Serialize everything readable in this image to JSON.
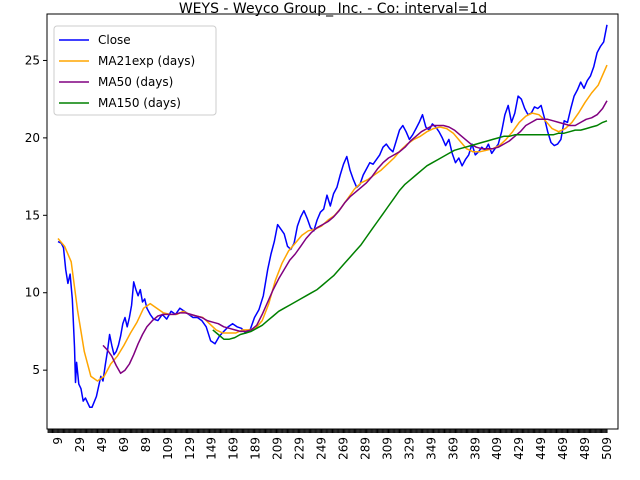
{
  "chart_data": {
    "type": "line",
    "title": "WEYS - Weyco Group_ Inc. - Co: interval=1d",
    "xlabel": "",
    "ylabel": "",
    "xlim": [
      -1,
      519
    ],
    "ylim": [
      1.2,
      28.0
    ],
    "x_ticks": [
      9,
      29,
      49,
      69,
      89,
      109,
      129,
      149,
      169,
      189,
      209,
      229,
      249,
      269,
      289,
      309,
      329,
      349,
      369,
      389,
      409,
      429,
      449,
      469,
      489,
      509
    ],
    "y_ticks": [
      5,
      10,
      15,
      20,
      25
    ],
    "grid": false,
    "legend_position": "top-left",
    "series": [
      {
        "name": "Close",
        "color": "#0000ff",
        "x": [
          9,
          12,
          14,
          16,
          18,
          20,
          22,
          24,
          25,
          26,
          28,
          30,
          32,
          34,
          36,
          38,
          40,
          44,
          48,
          50,
          52,
          54,
          56,
          58,
          60,
          62,
          64,
          66,
          68,
          70,
          72,
          74,
          76,
          78,
          80,
          82,
          84,
          86,
          88,
          90,
          93,
          96,
          100,
          104,
          108,
          112,
          116,
          120,
          124,
          128,
          132,
          136,
          140,
          144,
          148,
          152,
          156,
          160,
          164,
          168,
          172,
          176,
          180,
          184,
          188,
          192,
          196,
          200,
          203,
          206,
          209,
          212,
          215,
          218,
          221,
          224,
          227,
          230,
          233,
          236,
          239,
          242,
          245,
          248,
          251,
          254,
          257,
          260,
          263,
          266,
          269,
          272,
          275,
          278,
          281,
          284,
          287,
          290,
          293,
          296,
          299,
          302,
          305,
          308,
          311,
          314,
          317,
          320,
          323,
          326,
          329,
          332,
          335,
          338,
          341,
          344,
          347,
          350,
          353,
          356,
          359,
          362,
          365,
          368,
          371,
          374,
          377,
          380,
          383,
          386,
          389,
          392,
          395,
          398,
          401,
          404,
          407,
          410,
          413,
          416,
          419,
          422,
          425,
          428,
          431,
          434,
          437,
          440,
          443,
          446,
          449,
          452,
          455,
          458,
          461,
          464,
          467,
          470,
          473,
          476,
          479,
          482,
          485,
          488,
          491,
          494,
          497,
          500,
          503,
          506,
          509
        ],
        "values": [
          13.3,
          13.2,
          12.9,
          11.5,
          10.6,
          11.2,
          9.6,
          6.5,
          4.2,
          5.5,
          4.1,
          3.8,
          3.0,
          3.2,
          2.9,
          2.6,
          2.6,
          3.3,
          4.6,
          4.3,
          5.3,
          6.2,
          7.3,
          6.6,
          6.0,
          6.2,
          6.6,
          7.2,
          8.0,
          8.4,
          7.8,
          8.4,
          9.2,
          10.7,
          10.2,
          9.8,
          10.2,
          9.4,
          9.6,
          9.0,
          8.6,
          8.3,
          8.2,
          8.6,
          8.3,
          8.8,
          8.6,
          9.0,
          8.8,
          8.6,
          8.4,
          8.4,
          8.2,
          7.8,
          6.9,
          6.7,
          7.2,
          7.5,
          7.8,
          8.0,
          7.8,
          7.7,
          7.4,
          7.6,
          8.4,
          8.9,
          9.8,
          11.5,
          12.5,
          13.3,
          14.4,
          14.1,
          13.8,
          13.0,
          12.8,
          13.2,
          14.3,
          14.9,
          15.3,
          14.8,
          14.2,
          14.0,
          14.7,
          15.2,
          15.4,
          16.3,
          15.6,
          16.4,
          16.8,
          17.6,
          18.3,
          18.8,
          17.9,
          17.3,
          16.8,
          17.0,
          17.6,
          18.0,
          18.4,
          18.3,
          18.6,
          18.9,
          19.4,
          19.6,
          19.3,
          19.1,
          19.8,
          20.5,
          20.8,
          20.4,
          19.9,
          20.2,
          20.6,
          21.0,
          21.5,
          20.7,
          20.5,
          20.9,
          20.7,
          20.4,
          20.0,
          19.5,
          19.9,
          19.0,
          18.4,
          18.7,
          18.2,
          18.6,
          18.9,
          19.6,
          18.9,
          19.1,
          19.4,
          19.2,
          19.6,
          19.0,
          19.3,
          19.6,
          20.4,
          21.5,
          22.1,
          21.0,
          21.6,
          22.7,
          22.5,
          21.9,
          21.5,
          21.6,
          22.0,
          21.9,
          22.1,
          21.3,
          20.4,
          19.7,
          19.5,
          19.6,
          19.9,
          21.1,
          21.0,
          21.9,
          22.7,
          23.1,
          23.6,
          23.2,
          23.7,
          24.0,
          24.6,
          25.5,
          25.9,
          26.2,
          27.3
        ]
      },
      {
        "name": "MA21exp (days)",
        "color": "#ffa500",
        "x": [
          9,
          15,
          21,
          27,
          33,
          39,
          45,
          51,
          57,
          63,
          69,
          75,
          81,
          87,
          93,
          99,
          105,
          111,
          117,
          123,
          129,
          135,
          141,
          147,
          153,
          159,
          165,
          171,
          177,
          183,
          189,
          195,
          201,
          207,
          213,
          219,
          225,
          231,
          237,
          243,
          249,
          255,
          261,
          267,
          273,
          279,
          285,
          291,
          297,
          303,
          309,
          315,
          321,
          327,
          333,
          339,
          345,
          351,
          357,
          363,
          369,
          375,
          381,
          387,
          393,
          399,
          405,
          411,
          417,
          423,
          429,
          435,
          441,
          447,
          453,
          459,
          465,
          471,
          477,
          483,
          489,
          495,
          501,
          509
        ],
        "values": [
          13.5,
          13.0,
          12.0,
          8.8,
          6.2,
          4.6,
          4.3,
          4.6,
          5.4,
          5.9,
          6.6,
          7.4,
          8.1,
          9.0,
          9.3,
          9.0,
          8.7,
          8.6,
          8.6,
          8.8,
          8.6,
          8.5,
          8.4,
          8.0,
          7.6,
          7.4,
          7.4,
          7.4,
          7.6,
          7.6,
          7.7,
          8.2,
          9.3,
          10.8,
          11.9,
          12.7,
          13.2,
          13.7,
          14.0,
          14.1,
          14.3,
          14.7,
          15.0,
          15.5,
          16.1,
          16.7,
          17.1,
          17.3,
          17.6,
          17.9,
          18.3,
          18.7,
          19.2,
          19.6,
          19.9,
          20.1,
          20.4,
          20.6,
          20.7,
          20.6,
          20.3,
          19.8,
          19.3,
          19.1,
          19.1,
          19.2,
          19.3,
          19.5,
          19.9,
          20.4,
          21.0,
          21.4,
          21.6,
          21.5,
          21.1,
          20.6,
          20.4,
          20.6,
          21.0,
          21.6,
          22.3,
          22.9,
          23.4,
          24.7
        ]
      },
      {
        "name": "MA50 (days)",
        "color": "#800080",
        "x": [
          50,
          54,
          58,
          62,
          66,
          70,
          74,
          78,
          82,
          86,
          90,
          95,
          100,
          105,
          110,
          115,
          120,
          125,
          130,
          135,
          140,
          145,
          150,
          155,
          160,
          165,
          170,
          175,
          180,
          185,
          190,
          195,
          200,
          205,
          210,
          215,
          220,
          225,
          230,
          235,
          240,
          245,
          250,
          255,
          260,
          265,
          270,
          275,
          280,
          285,
          290,
          295,
          300,
          305,
          310,
          315,
          320,
          325,
          330,
          335,
          340,
          345,
          350,
          355,
          360,
          365,
          370,
          375,
          380,
          385,
          390,
          395,
          400,
          405,
          410,
          415,
          420,
          425,
          430,
          435,
          440,
          445,
          450,
          455,
          460,
          465,
          470,
          475,
          480,
          485,
          490,
          495,
          500,
          505,
          509
        ],
        "values": [
          6.6,
          6.3,
          5.9,
          5.3,
          4.8,
          5.0,
          5.4,
          6.0,
          6.7,
          7.3,
          7.8,
          8.2,
          8.5,
          8.6,
          8.6,
          8.6,
          8.7,
          8.7,
          8.6,
          8.5,
          8.4,
          8.2,
          8.1,
          8.0,
          7.8,
          7.7,
          7.6,
          7.5,
          7.5,
          7.6,
          7.9,
          8.6,
          9.4,
          10.2,
          10.9,
          11.5,
          12.1,
          12.5,
          13.0,
          13.5,
          13.9,
          14.2,
          14.4,
          14.6,
          14.9,
          15.3,
          15.8,
          16.2,
          16.5,
          16.8,
          17.1,
          17.5,
          18.0,
          18.4,
          18.7,
          18.9,
          19.1,
          19.4,
          19.8,
          20.1,
          20.4,
          20.6,
          20.8,
          20.8,
          20.8,
          20.7,
          20.5,
          20.2,
          19.9,
          19.6,
          19.4,
          19.3,
          19.3,
          19.3,
          19.4,
          19.6,
          19.8,
          20.1,
          20.4,
          20.8,
          21.0,
          21.2,
          21.2,
          21.2,
          21.1,
          21.0,
          20.9,
          20.8,
          20.8,
          21.0,
          21.2,
          21.3,
          21.5,
          21.9,
          22.4
        ]
      },
      {
        "name": "MA150 (days)",
        "color": "#008000",
        "x": [
          150,
          155,
          160,
          165,
          170,
          175,
          180,
          185,
          190,
          195,
          200,
          205,
          210,
          215,
          220,
          225,
          230,
          235,
          240,
          245,
          250,
          255,
          260,
          265,
          270,
          275,
          280,
          285,
          290,
          295,
          300,
          305,
          310,
          315,
          320,
          325,
          330,
          335,
          340,
          345,
          350,
          355,
          360,
          365,
          370,
          375,
          380,
          385,
          390,
          395,
          400,
          405,
          410,
          415,
          420,
          425,
          430,
          435,
          440,
          445,
          450,
          455,
          460,
          465,
          470,
          475,
          480,
          485,
          490,
          495,
          500,
          505,
          509
        ],
        "values": [
          7.6,
          7.3,
          7.0,
          7.0,
          7.1,
          7.3,
          7.4,
          7.5,
          7.7,
          7.9,
          8.2,
          8.5,
          8.8,
          9.0,
          9.2,
          9.4,
          9.6,
          9.8,
          10.0,
          10.2,
          10.5,
          10.8,
          11.1,
          11.5,
          11.9,
          12.3,
          12.7,
          13.1,
          13.6,
          14.1,
          14.6,
          15.1,
          15.6,
          16.1,
          16.6,
          17.0,
          17.3,
          17.6,
          17.9,
          18.2,
          18.4,
          18.6,
          18.8,
          19.0,
          19.2,
          19.3,
          19.4,
          19.5,
          19.6,
          19.7,
          19.8,
          19.9,
          20.0,
          20.1,
          20.1,
          20.2,
          20.2,
          20.2,
          20.2,
          20.2,
          20.2,
          20.2,
          20.2,
          20.3,
          20.3,
          20.4,
          20.5,
          20.5,
          20.6,
          20.7,
          20.8,
          21.0,
          21.1
        ]
      }
    ]
  }
}
